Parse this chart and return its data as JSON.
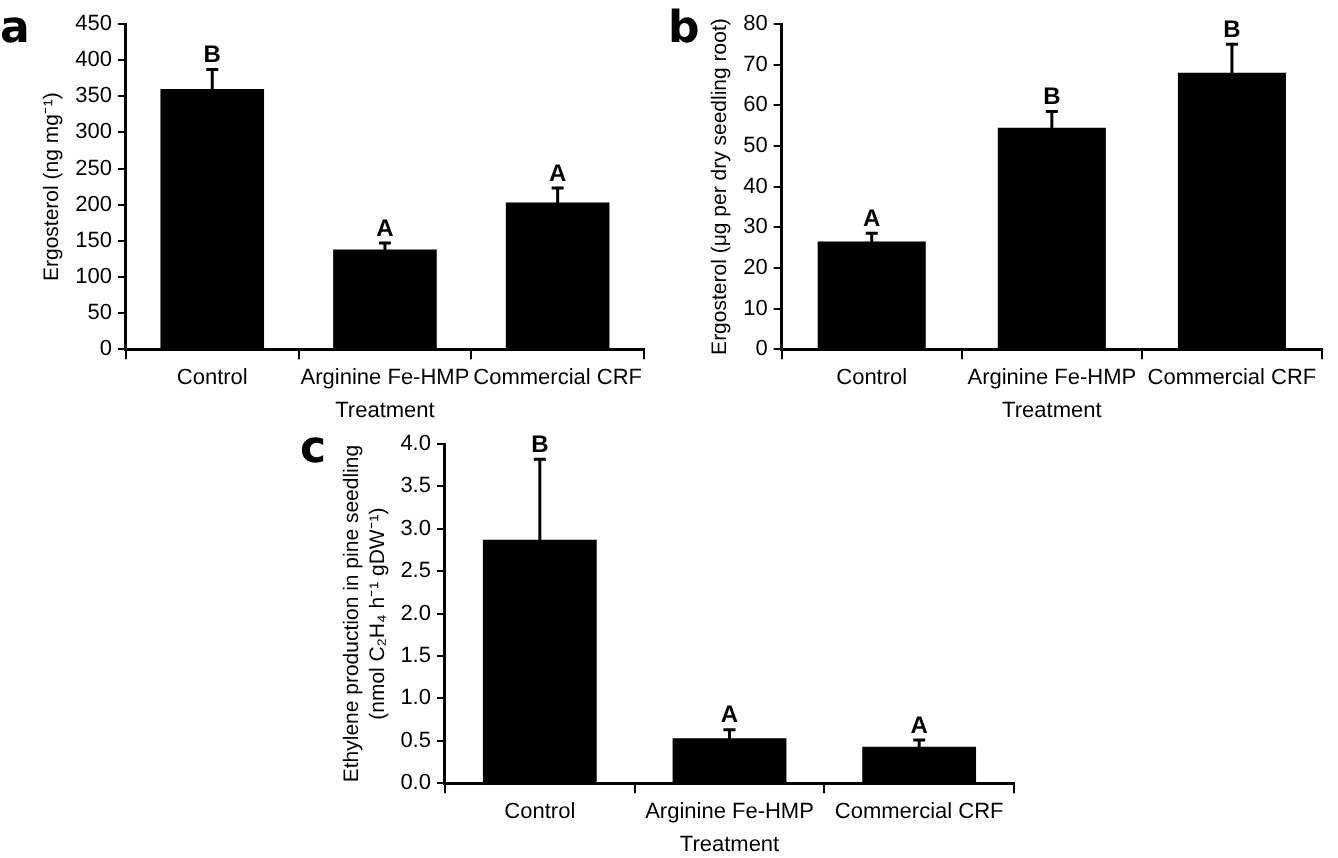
{
  "chart_data": [
    {
      "type": "bar",
      "title": "a",
      "categories": [
        "Control",
        "Arginine Fe-HMP",
        "Commercial CRF"
      ],
      "xlabel": "Treatment",
      "ylabel": "Ergosterol (ng mg⁻¹)",
      "values": [
        360,
        138,
        203
      ],
      "errors": [
        27,
        9,
        20
      ],
      "color": "#000000",
      "ylim": [
        0,
        450
      ],
      "yticks": [
        0,
        50,
        100,
        150,
        200,
        250,
        300,
        350,
        400,
        450
      ],
      "grid": false,
      "legend": false,
      "annotations": [
        {
          "text": "B",
          "x": "Control",
          "y": 387
        },
        {
          "text": "A",
          "x": "Arginine Fe-HMP",
          "y": 147
        },
        {
          "text": "A",
          "x": "Commercial CRF",
          "y": 223
        }
      ]
    },
    {
      "type": "bar",
      "title": "b",
      "categories": [
        "Control",
        "Arginine Fe-HMP",
        "Commercial CRF"
      ],
      "xlabel": "Treatment",
      "ylabel": "Ergosterol (μg per dry seedling root)",
      "values": [
        26.5,
        54.5,
        68
      ],
      "errors": [
        2,
        4,
        7
      ],
      "color": "#000000",
      "ylim": [
        0,
        80
      ],
      "yticks": [
        0,
        10,
        20,
        30,
        40,
        50,
        60,
        70,
        80
      ],
      "grid": false,
      "legend": false,
      "annotations": [
        {
          "text": "A",
          "x": "Control",
          "y": 28.5
        },
        {
          "text": "B",
          "x": "Arginine Fe-HMP",
          "y": 58.5
        },
        {
          "text": "B",
          "x": "Commercial CRF",
          "y": 75
        }
      ]
    },
    {
      "type": "bar",
      "title": "c",
      "categories": [
        "Control",
        "Arginine Fe-HMP",
        "Commercial CRF"
      ],
      "xlabel": "Treatment",
      "ylabel": "Ethylene production in pine seedling (nmol C₂H₄ h⁻¹ gDW⁻¹)",
      "values": [
        2.87,
        0.53,
        0.43
      ],
      "errors": [
        0.95,
        0.1,
        0.08
      ],
      "color": "#000000",
      "ylim": [
        0,
        4
      ],
      "yticks": [
        {
          "value": 0,
          "label": "0.0"
        },
        {
          "value": 0.5,
          "label": "0.5"
        },
        {
          "value": 1,
          "label": "1.0"
        },
        {
          "value": 1.5,
          "label": "1.5"
        },
        {
          "value": 2,
          "label": "2.0"
        },
        {
          "value": 2.5,
          "label": "2.5"
        },
        {
          "value": 3,
          "label": "3.0"
        },
        {
          "value": 3.5,
          "label": "3.5"
        },
        {
          "value": 4,
          "label": "4.0"
        }
      ],
      "grid": false,
      "legend": false,
      "annotations": [
        {
          "text": "B",
          "x": "Control",
          "y": 3.82
        },
        {
          "text": "A",
          "x": "Arginine Fe-HMP",
          "y": 0.63
        },
        {
          "text": "A",
          "x": "Commercial CRF",
          "y": 0.51
        }
      ]
    }
  ]
}
